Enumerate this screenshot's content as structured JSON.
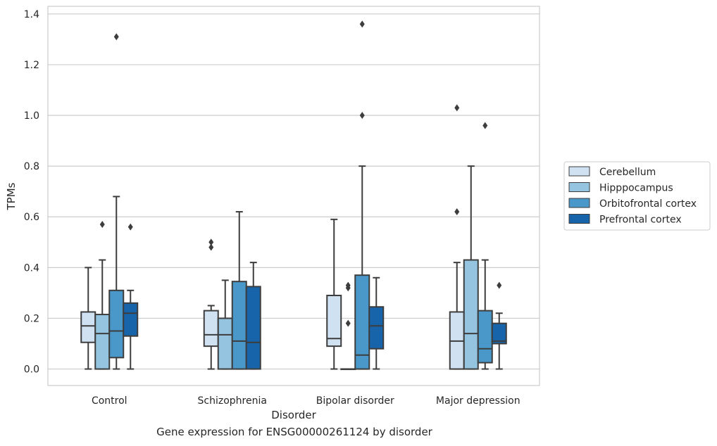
{
  "caption": "Gene expression for ENSG00000261124 by disorder",
  "chart_data": {
    "type": "box",
    "xlabel": "Disorder",
    "ylabel": "TPMs",
    "ylim": [
      -0.065,
      1.43
    ],
    "yticks": [
      0.0,
      0.2,
      0.4,
      0.6,
      0.8,
      1.0,
      1.2,
      1.4
    ],
    "ytick_labels": [
      "0.0",
      "0.2",
      "0.4",
      "0.6",
      "0.8",
      "1.0",
      "1.2",
      "1.4"
    ],
    "grid": true,
    "legend_position": "right",
    "categories": [
      "Control",
      "Schizophrenia",
      "Bipolar disorder",
      "Major depression"
    ],
    "series": [
      {
        "name": "Cerebellum",
        "color": "#d0e1f2",
        "boxes": [
          {
            "whisker_low": 0.0,
            "q1": 0.105,
            "median": 0.17,
            "q3": 0.225,
            "whisker_high": 0.4,
            "outliers": []
          },
          {
            "whisker_low": 0.0,
            "q1": 0.09,
            "median": 0.135,
            "q3": 0.23,
            "whisker_high": 0.25,
            "outliers": [
              0.48,
              0.5
            ]
          },
          {
            "whisker_low": 0.0,
            "q1": 0.09,
            "median": 0.12,
            "q3": 0.29,
            "whisker_high": 0.59,
            "outliers": []
          },
          {
            "whisker_low": 0.0,
            "q1": 0.0,
            "median": 0.11,
            "q3": 0.225,
            "whisker_high": 0.42,
            "outliers": [
              0.62,
              1.03
            ]
          }
        ]
      },
      {
        "name": "Hipppocampus",
        "color": "#94c4df",
        "boxes": [
          {
            "whisker_low": 0.0,
            "q1": 0.0,
            "median": 0.14,
            "q3": 0.215,
            "whisker_high": 0.43,
            "outliers": [
              0.57
            ]
          },
          {
            "whisker_low": 0.0,
            "q1": 0.0,
            "median": 0.135,
            "q3": 0.2,
            "whisker_high": 0.35,
            "outliers": []
          },
          {
            "whisker_low": 0.0,
            "q1": 0.0,
            "median": 0.0,
            "q3": 0.0,
            "whisker_high": 0.0,
            "outliers": [
              0.18,
              0.32,
              0.33
            ]
          },
          {
            "whisker_low": 0.0,
            "q1": 0.0,
            "median": 0.14,
            "q3": 0.43,
            "whisker_high": 0.8,
            "outliers": []
          }
        ]
      },
      {
        "name": "Orbitofrontal cortex",
        "color": "#4a98c9",
        "boxes": [
          {
            "whisker_low": 0.0,
            "q1": 0.045,
            "median": 0.15,
            "q3": 0.31,
            "whisker_high": 0.68,
            "outliers": [
              1.31
            ]
          },
          {
            "whisker_low": 0.0,
            "q1": 0.0,
            "median": 0.11,
            "q3": 0.345,
            "whisker_high": 0.62,
            "outliers": []
          },
          {
            "whisker_low": 0.0,
            "q1": 0.0,
            "median": 0.055,
            "q3": 0.37,
            "whisker_high": 0.8,
            "outliers": [
              1.0,
              1.36
            ]
          },
          {
            "whisker_low": 0.0,
            "q1": 0.025,
            "median": 0.08,
            "q3": 0.23,
            "whisker_high": 0.43,
            "outliers": [
              0.96
            ]
          }
        ]
      },
      {
        "name": "Prefrontal cortex",
        "color": "#1764ab",
        "boxes": [
          {
            "whisker_low": 0.0,
            "q1": 0.13,
            "median": 0.22,
            "q3": 0.26,
            "whisker_high": 0.31,
            "outliers": [
              0.56
            ]
          },
          {
            "whisker_low": 0.0,
            "q1": 0.0,
            "median": 0.105,
            "q3": 0.325,
            "whisker_high": 0.42,
            "outliers": []
          },
          {
            "whisker_low": 0.0,
            "q1": 0.08,
            "median": 0.17,
            "q3": 0.245,
            "whisker_high": 0.36,
            "outliers": []
          },
          {
            "whisker_low": 0.0,
            "q1": 0.1,
            "median": 0.11,
            "q3": 0.18,
            "whisker_high": 0.22,
            "outliers": [
              0.33
            ]
          }
        ]
      }
    ]
  }
}
